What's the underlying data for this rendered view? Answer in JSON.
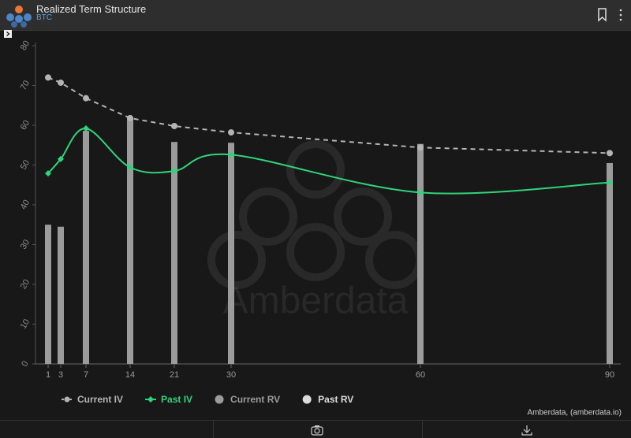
{
  "header": {
    "title": "Realized Term Structure",
    "subtitle": "BTC"
  },
  "chart_data": {
    "type": "combo",
    "x": [
      1,
      3,
      7,
      14,
      21,
      30,
      60,
      90
    ],
    "xlim": [
      -1,
      91
    ],
    "xticks": [
      1,
      3,
      7,
      14,
      21,
      30,
      60,
      90
    ],
    "ylim": [
      0,
      80
    ],
    "yticks": [
      0,
      10,
      20,
      30,
      40,
      50,
      60,
      70,
      80
    ],
    "watermark": "Amberdata",
    "credit": "Amberdata, (amberdata.io)",
    "legend": "bottom-left",
    "series": [
      {
        "name": "Current IV",
        "type": "line",
        "line_style": "dashed",
        "smooth": false,
        "color": "#b4b4b4",
        "values": [
          72,
          70.7,
          66.8,
          61.8,
          59.8,
          58.2,
          54.4,
          53
        ]
      },
      {
        "name": "Past IV",
        "type": "line",
        "line_style": "solid",
        "smooth": true,
        "color": "#2fd47a",
        "values": [
          47.9,
          51.5,
          59.2,
          49.4,
          48.5,
          52.6,
          43.1,
          45.6
        ]
      },
      {
        "name": "Current RV",
        "type": "bar",
        "color": "#9b9b9b",
        "values": [
          35,
          34.5,
          58.6,
          62,
          55.8,
          55.6,
          55.3,
          50.5
        ]
      },
      {
        "name": "Past RV",
        "type": "bar",
        "color": "#dcdcdc",
        "values": [
          null,
          null,
          null,
          null,
          null,
          null,
          null,
          null
        ]
      }
    ]
  }
}
